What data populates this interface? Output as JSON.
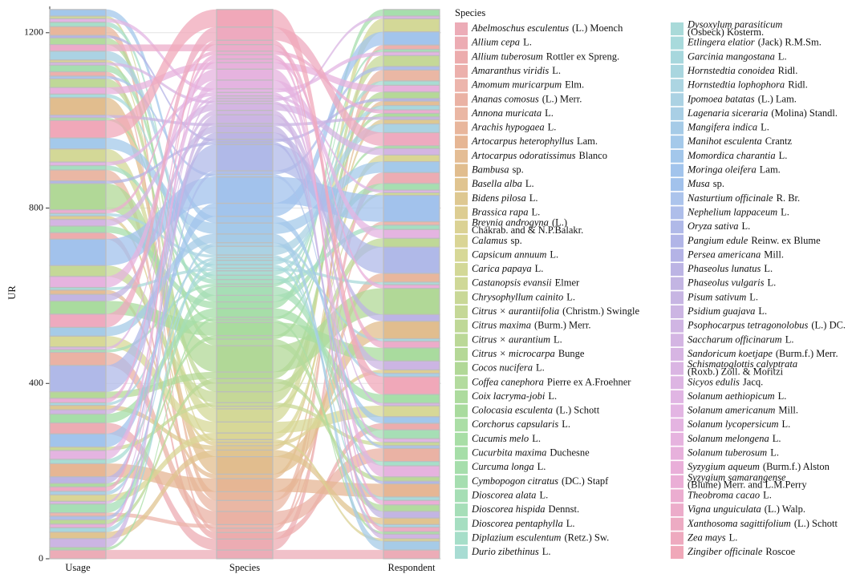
{
  "chart_data": {
    "type": "alluvial",
    "ylabel": "UR",
    "axes": [
      "Usage",
      "Species",
      "Respondent"
    ],
    "ylim": [
      0,
      1260
    ],
    "yticks": [
      0,
      400,
      800,
      1200
    ],
    "legend_title": "Species",
    "species": [
      {
        "name": "Abelmoschus esculentus",
        "author": "(L.) Moench",
        "color": "hsl(350,62%,80%)",
        "value": 20
      },
      {
        "name": "Allium cepa",
        "author": "L.",
        "color": "hsl(354,62%,80%)",
        "value": 25
      },
      {
        "name": "Allium tuberosum",
        "author": "Rottler ex Spreng.",
        "color": "hsl(359,62%,80%)",
        "value": 15
      },
      {
        "name": "Amaranthus viridis",
        "author": "L.",
        "color": "hsl(3,62%,80%)",
        "value": 10
      },
      {
        "name": "Amomum muricarpum",
        "author": "Elm.",
        "color": "hsl(8,62%,80%)",
        "value": 8
      },
      {
        "name": "Ananas comosus",
        "author": "(L.) Merr.",
        "color": "hsl(12,62%,78%)",
        "value": 30
      },
      {
        "name": "Annona muricata",
        "author": "L.",
        "color": "hsl(16,62%,78%)",
        "value": 25
      },
      {
        "name": "Arachis hypogaea",
        "author": "L.",
        "color": "hsl(21,62%,76%)",
        "value": 20
      },
      {
        "name": "Artocarpus heterophyllus",
        "author": "Lam.",
        "color": "hsl(25,62%,74%)",
        "value": 30
      },
      {
        "name": "Artocarpus odoratissimus",
        "author": "Blanco",
        "color": "hsl(30,60%,74%)",
        "value": 10
      },
      {
        "name": "Bambusa",
        "author": "sp.",
        "color": "hsl(34,58%,72%)",
        "value": 40
      },
      {
        "name": "Basella alba",
        "author": "L.",
        "color": "hsl(39,56%,72%)",
        "value": 15
      },
      {
        "name": "Bidens pilosa",
        "author": "L.",
        "color": "hsl(43,54%,72%)",
        "value": 10
      },
      {
        "name": "Brassica rapa",
        "author": "L.",
        "color": "hsl(47,52%,72%)",
        "value": 8
      },
      {
        "name": "Breynia androgyna",
        "author": "(L.)",
        "author2": "Chakrab. and & N.P.Balakr.",
        "color": "hsl(52,50%,72%)",
        "value": 6
      },
      {
        "name": "Calamus",
        "author": "sp.",
        "color": "hsl(56,48%,72%)",
        "value": 15
      },
      {
        "name": "Capsicum annuum",
        "author": "L.",
        "color": "hsl(61,46%,72%)",
        "value": 25
      },
      {
        "name": "Carica papaya",
        "author": "L.",
        "color": "hsl(65,46%,72%)",
        "value": 30
      },
      {
        "name": "Castanopsis evansii",
        "author": "Elmer",
        "color": "hsl(69,46%,72%)",
        "value": 6
      },
      {
        "name": "Chrysophyllum cainito",
        "author": "L.",
        "color": "hsl(74,46%,72%)",
        "value": 8
      },
      {
        "name": "Citrus × aurantiifolia",
        "author": "(Christm.) Swingle",
        "color": "hsl(78,46%,72%)",
        "value": 25
      },
      {
        "name": "Citrus maxima",
        "author": "(Burm.) Merr.",
        "color": "hsl(83,46%,72%)",
        "value": 20
      },
      {
        "name": "Citrus × aurantium",
        "author": "L.",
        "color": "hsl(87,46%,72%)",
        "value": 10
      },
      {
        "name": "Citrus × microcarpa",
        "author": "Bunge",
        "color": "hsl(92,46%,72%)",
        "value": 15
      },
      {
        "name": "Cocos nucifera",
        "author": "L.",
        "color": "hsl(96,46%,72%)",
        "value": 60
      },
      {
        "name": "Coffea canephora",
        "author": "Pierre ex A.Froehner",
        "color": "hsl(100,46%,74%)",
        "value": 15
      },
      {
        "name": "Coix lacryma-jobi",
        "author": "L.",
        "color": "hsl(105,46%,74%)",
        "value": 8
      },
      {
        "name": "Colocasia esculenta",
        "author": "(L.) Schott",
        "color": "hsl(109,46%,74%)",
        "value": 30
      },
      {
        "name": "Corchorus capsularis",
        "author": "L.",
        "color": "hsl(114,46%,76%)",
        "value": 6
      },
      {
        "name": "Cucumis melo",
        "author": "L.",
        "color": "hsl(118,46%,76%)",
        "value": 6
      },
      {
        "name": "Cucurbita maxima",
        "author": "Duchesne",
        "color": "hsl(122,46%,76%)",
        "value": 20
      },
      {
        "name": "Curcuma longa",
        "author": "L.",
        "color": "hsl(127,46%,76%)",
        "value": 15
      },
      {
        "name": "Cymbopogon citratus",
        "author": "(DC.) Stapf",
        "color": "hsl(131,46%,76%)",
        "value": 15
      },
      {
        "name": "Dioscorea alata",
        "author": "L.",
        "color": "hsl(136,46%,76%)",
        "value": 20
      },
      {
        "name": "Dioscorea hispida",
        "author": "Dennst.",
        "color": "hsl(140,46%,76%)",
        "value": 6
      },
      {
        "name": "Dioscorea pentaphylla",
        "author": "L.",
        "color": "hsl(149,46%,76%)",
        "value": 10
      },
      {
        "name": "Diplazium esculentum",
        "author": "(Retz.) Sw.",
        "color": "hsl(158,46%,76%)",
        "value": 10
      },
      {
        "name": "Durio zibethinus",
        "author": "L.",
        "color": "hsl(170,42%,76%)",
        "value": 10
      },
      {
        "name": "Dysoxylum parasiticum",
        "author2": "(Osbeck) Kosterm.",
        "color": "hsl(178,40%,76%)",
        "value": 6
      },
      {
        "name": "Etlingera elatior",
        "author": "(Jack) R.M.Sm.",
        "color": "hsl(182,42%,76%)",
        "value": 8
      },
      {
        "name": "Garcinia mangostana",
        "author": "L.",
        "color": "hsl(186,44%,76%)",
        "value": 10
      },
      {
        "name": "Hornstedtia conoidea",
        "author": "Ridl.",
        "color": "hsl(190,46%,77%)",
        "value": 6
      },
      {
        "name": "Hornstedtia lophophora",
        "author": "Ridl.",
        "color": "hsl(194,48%,78%)",
        "value": 6
      },
      {
        "name": "Ipomoea batatas",
        "author": "(L.) Lam.",
        "color": "hsl(198,50%,78%)",
        "value": 20
      },
      {
        "name": "Lagenaria siceraria",
        "author": "(Molina) Standl.",
        "color": "hsl(202,54%,78%)",
        "value": 8
      },
      {
        "name": "Mangifera indica",
        "author": "L.",
        "color": "hsl(206,58%,78%)",
        "value": 20
      },
      {
        "name": "Manihot esculenta",
        "author": "Crantz",
        "color": "hsl(208,62%,78%)",
        "value": 25
      },
      {
        "name": "Momordica charantia",
        "author": "L.",
        "color": "hsl(210,64%,78%)",
        "value": 15
      },
      {
        "name": "Moringa oleifera",
        "author": "Lam.",
        "color": "hsl(212,66%,78%)",
        "value": 30
      },
      {
        "name": "Musa",
        "author": "sp.",
        "color": "hsl(214,66%,78%)",
        "value": 60
      },
      {
        "name": "Nasturtium officinale",
        "author": "R. Br.",
        "color": "hsl(218,62%,80%)",
        "value": 6
      },
      {
        "name": "Nephelium lappaceum",
        "author": "L.",
        "color": "hsl(224,58%,80%)",
        "value": 8
      },
      {
        "name": "Oryza sativa",
        "author": "L.",
        "color": "hsl(230,55%,80%)",
        "value": 60
      },
      {
        "name": "Pangium edule",
        "author": "Reinw. ex Blume",
        "color": "hsl(236,52%,80%)",
        "value": 6
      },
      {
        "name": "Persea americana",
        "author": "Mill.",
        "color": "hsl(242,50%,80%)",
        "value": 6
      },
      {
        "name": "Phaseolus lunatus",
        "author": "L.",
        "color": "hsl(250,48%,80%)",
        "value": 15
      },
      {
        "name": "Phaseolus vulgaris",
        "author": "L.",
        "color": "hsl(258,46%,80%)",
        "value": 15
      },
      {
        "name": "Pisum sativum",
        "author": "L.",
        "color": "hsl(264,46%,80%)",
        "value": 6
      },
      {
        "name": "Psidium guajava",
        "author": "L.",
        "color": "hsl(270,46%,80%)",
        "value": 20
      },
      {
        "name": "Psophocarpus tetragonolobus",
        "author": "(L.) DC.",
        "color": "hsl(275,46%,80%)",
        "value": 10
      },
      {
        "name": "Saccharum officinarum",
        "author": "L.",
        "color": "hsl(280,46%,80%)",
        "value": 15
      },
      {
        "name": "Sandoricum koetjape",
        "author": "(Burm.f.) Merr.",
        "color": "hsl(284,46%,80%)",
        "value": 6
      },
      {
        "name": "Schismatoglottis calyptrata",
        "author2": "(Roxb.) Zoll. & Moritzi",
        "color": "hsl(288,46%,80%)",
        "value": 6
      },
      {
        "name": "Sicyos edulis",
        "author": "Jacq.",
        "color": "hsl(292,46%,80%)",
        "value": 6
      },
      {
        "name": "Solanum aethiopicum",
        "author": "L.",
        "color": "hsl(296,46%,80%)",
        "value": 8
      },
      {
        "name": "Solanum americanum",
        "author": "Mill.",
        "color": "hsl(300,46%,80%)",
        "value": 8
      },
      {
        "name": "Solanum lycopersicum",
        "author": "L.",
        "color": "hsl(304,48%,80%)",
        "value": 20
      },
      {
        "name": "Solanum melongena",
        "author": "L.",
        "color": "hsl(308,50%,80%)",
        "value": 25
      },
      {
        "name": "Solanum tuberosum",
        "author": "L.",
        "color": "hsl(312,52%,80%)",
        "value": 15
      },
      {
        "name": "Syzygium aqueum",
        "author": "(Burm.f.) Alston",
        "color": "hsl(316,56%,80%)",
        "value": 8
      },
      {
        "name": "Syzygium samarangense",
        "author2": "(Blume) Merr. and L.M.Perry",
        "color": "hsl(320,58%,80%)",
        "value": 10
      },
      {
        "name": "Theobroma cacao",
        "author": "L.",
        "color": "hsl(326,60%,80%)",
        "value": 8
      },
      {
        "name": "Vigna unguiculata",
        "author": "(L.) Walp.",
        "color": "hsl(332,62%,80%)",
        "value": 15
      },
      {
        "name": "Xanthosoma sagittifolium",
        "author": "(L.) Schott",
        "color": "hsl(338,64%,80%)",
        "value": 10
      },
      {
        "name": "Zea mays",
        "author": "L.",
        "color": "hsl(342,66%,80%)",
        "value": 30
      },
      {
        "name": "Zingiber officinale",
        "author": "Roscoe",
        "color": "hsl(346,70%,80%)",
        "value": 40
      }
    ]
  }
}
